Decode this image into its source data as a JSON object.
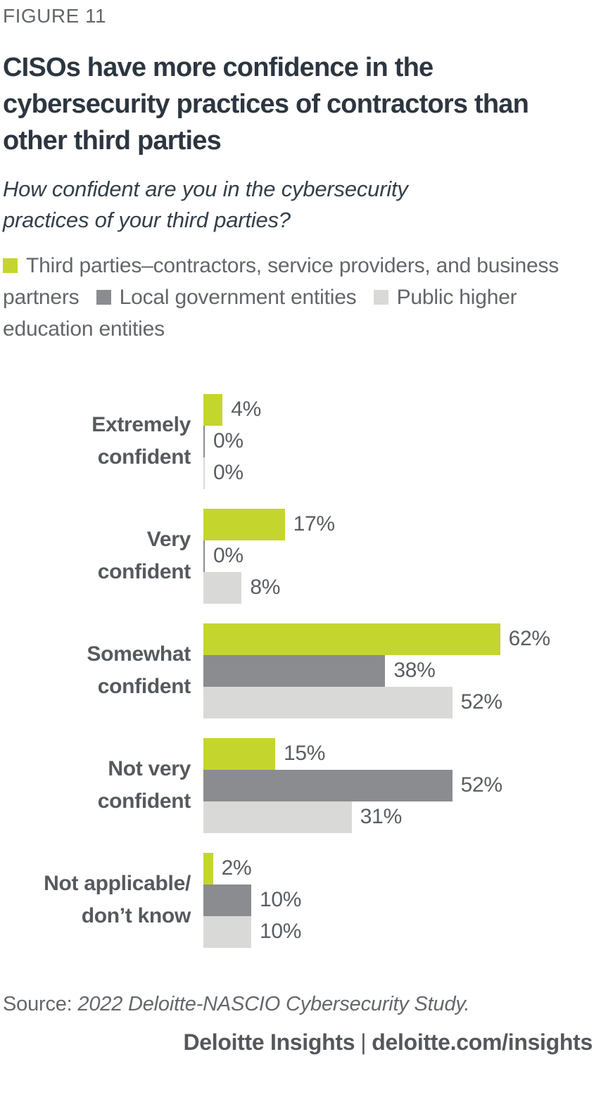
{
  "figure": {
    "label": "FIGURE 11",
    "title": "CISOs have more confidence in the cybersecurity practices of contractors than other third parties",
    "subtitle": "How confident are you in the cybersecurity practices of your third parties?"
  },
  "chart_data": {
    "type": "bar",
    "orientation": "horizontal",
    "title": "CISOs have more confidence in the cybersecurity practices of contractors than other third parties",
    "subtitle": "How confident are you in the cybersecurity practices of your third parties?",
    "xlabel": "",
    "ylabel": "",
    "xlim": [
      0,
      100
    ],
    "grid": false,
    "legend_position": "top",
    "value_suffix": "%",
    "categories": [
      {
        "label": "Extremely confident",
        "lines": [
          "Extremely",
          "confident"
        ]
      },
      {
        "label": "Very confident",
        "lines": [
          "Very",
          "confident"
        ]
      },
      {
        "label": "Somewhat confident",
        "lines": [
          "Somewhat",
          "confident"
        ]
      },
      {
        "label": "Not very confident",
        "lines": [
          "Not very",
          "confident"
        ]
      },
      {
        "label": "Not applicable/don’t know",
        "lines": [
          "Not applicable/",
          "don’t know"
        ]
      }
    ],
    "series": [
      {
        "name": "Third parties–contractors, service providers, and business partners",
        "color": "#c4d62e",
        "values": [
          4,
          17,
          62,
          15,
          2
        ]
      },
      {
        "name": "Local government entities",
        "color": "#8a8c8f",
        "values": [
          0,
          0,
          38,
          52,
          10
        ]
      },
      {
        "name": "Public higher education entities",
        "color": "#d9dad7",
        "values": [
          0,
          8,
          52,
          31,
          10
        ]
      }
    ]
  },
  "footer": {
    "source_prefix": "Source: ",
    "source_text": "2022 Deloitte-NASCIO Cybersecurity Study.",
    "brand_left": "Deloitte Insights",
    "brand_separator": "|",
    "brand_right": "deloitte.com/insights"
  },
  "palette": {
    "accent_green": "#c4d62e",
    "dark_gray": "#8a8c8f",
    "light_gray": "#d9dad7",
    "title_text": "#2d3640",
    "body_text": "#63666a",
    "label_text": "#565a5e"
  }
}
